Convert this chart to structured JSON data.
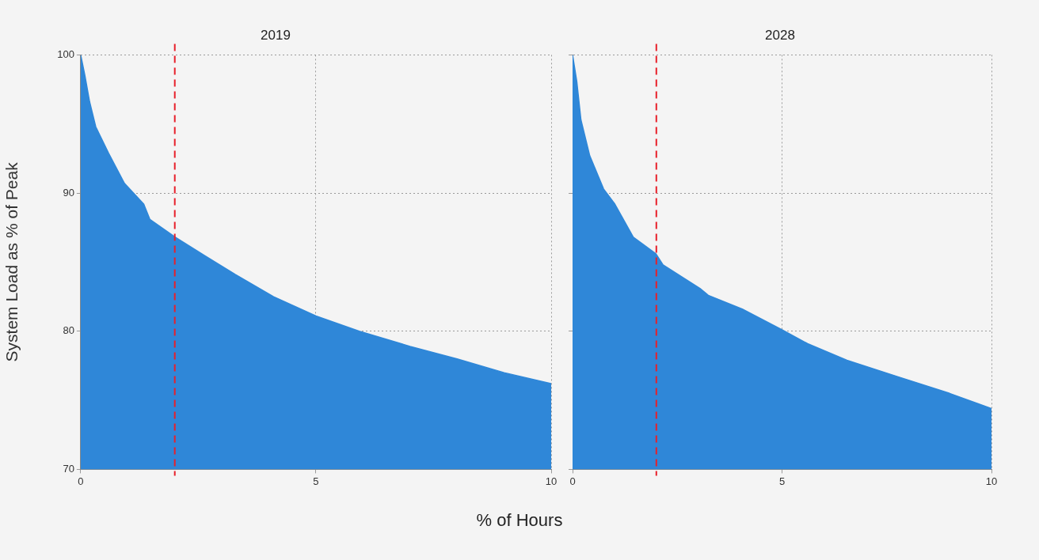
{
  "chart_data": [
    {
      "type": "area",
      "title": "2019",
      "xlabel": "% of Hours",
      "ylabel": "System Load as % of Peak",
      "x": [
        0,
        0.09,
        0.19,
        0.32,
        0.59,
        0.93,
        1.34,
        1.47,
        2.01,
        2.62,
        3.29,
        4.1,
        5.0,
        5.92,
        7,
        8,
        9,
        10
      ],
      "series": [
        {
          "color": "#2f87d8",
          "values": [
            100,
            98.5,
            96.6,
            94.8,
            92.9,
            90.7,
            89.2,
            88.1,
            86.8,
            85.5,
            84.1,
            82.5,
            81.1,
            80.0,
            78.9,
            78.0,
            77.0,
            76.2
          ]
        }
      ],
      "xlim": [
        0,
        10
      ],
      "ylim": [
        70,
        100
      ],
      "xticks": [
        0,
        5,
        10
      ],
      "yticks": [
        70,
        80,
        90,
        100
      ],
      "grid": true,
      "ref_lines": [
        {
          "axis": "x",
          "value": 2,
          "color": "#e8202a",
          "line_style": "dashed"
        }
      ]
    },
    {
      "type": "area",
      "title": "2028",
      "x": [
        0,
        0.1,
        0.2,
        0.41,
        0.74,
        1.01,
        1.45,
        1.99,
        2.16,
        3.04,
        3.24,
        4.05,
        5.0,
        5.61,
        6.55,
        7.77,
        9,
        10
      ],
      "series": [
        {
          "color": "#2f87d8",
          "values": [
            100,
            98.1,
            95.3,
            92.7,
            90.3,
            89.2,
            86.8,
            85.6,
            84.8,
            83.1,
            82.6,
            81.6,
            80.1,
            79.1,
            77.9,
            76.7,
            75.5,
            74.4
          ]
        }
      ],
      "xlim": [
        0,
        10
      ],
      "ylim": [
        70,
        100
      ],
      "xticks": [
        0,
        5,
        10
      ],
      "yticks": [
        70,
        80,
        90,
        100
      ],
      "grid": true,
      "tick_labels": "x",
      "ref_lines": [
        {
          "axis": "x",
          "value": 2,
          "color": "#e8202a",
          "line_style": "dashed"
        }
      ]
    }
  ]
}
